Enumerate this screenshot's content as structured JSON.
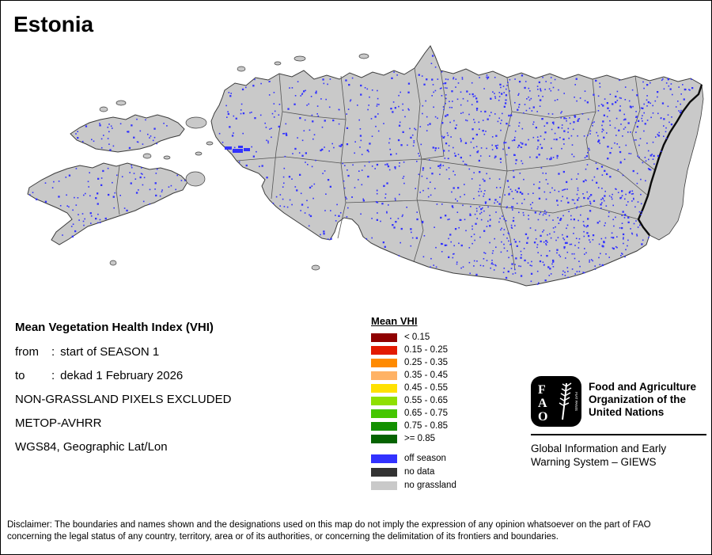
{
  "page": {
    "title": "Estonia",
    "background": "#ffffff",
    "border_color": "#000000"
  },
  "map": {
    "land_color": "#c9c9c9",
    "coast_color": "#3c3c3c",
    "district_line_color": "#555555",
    "country_border_color": "#0b0b0b",
    "speckle_color": "#3232ff"
  },
  "info_block": {
    "title": "Mean Vegetation Health Index (VHI)",
    "from_label": "from",
    "from_sep": ":",
    "from_value": "start of SEASON 1",
    "to_label": "to",
    "to_sep": ":",
    "to_value": "dekad 1 February 2026",
    "line3": "NON-GRASSLAND PIXELS EXCLUDED",
    "line4": "METOP-AVHRR",
    "line5": "WGS84, Geographic Lat/Lon"
  },
  "legend": {
    "title": "Mean VHI",
    "classes": [
      {
        "label": "< 0.15",
        "color": "#8f0000"
      },
      {
        "label": "0.15 - 0.25",
        "color": "#e31a00"
      },
      {
        "label": "0.25 - 0.35",
        "color": "#ff8a00"
      },
      {
        "label": "0.35 - 0.45",
        "color": "#ffb265"
      },
      {
        "label": "0.45 - 0.55",
        "color": "#ffe100"
      },
      {
        "label": "0.55 - 0.65",
        "color": "#8fe000"
      },
      {
        "label": "0.65 - 0.75",
        "color": "#45c600"
      },
      {
        "label": "0.75 - 0.85",
        "color": "#129000"
      },
      {
        "label": ">= 0.85",
        "color": "#056300"
      }
    ],
    "extras": [
      {
        "label": "off season",
        "color": "#3232ff"
      },
      {
        "label": "no data",
        "color": "#333333"
      },
      {
        "label": "no grassland",
        "color": "#c9c9c9"
      }
    ]
  },
  "fao": {
    "logo_text": "FAO",
    "logo_motto": "FIAT PANIS",
    "org_name": "Food and Agriculture Organization of the United Nations",
    "tagline": "Global Information and Early Warning System – GIEWS"
  },
  "disclaimer": "Disclaimer: The boundaries and names shown and the designations used on this map do not imply the expression of any opinion whatsoever on the part of FAO concerning the legal status of any country, territory, area or of its authorities, or concerning the delimitation of its frontiers and boundaries."
}
